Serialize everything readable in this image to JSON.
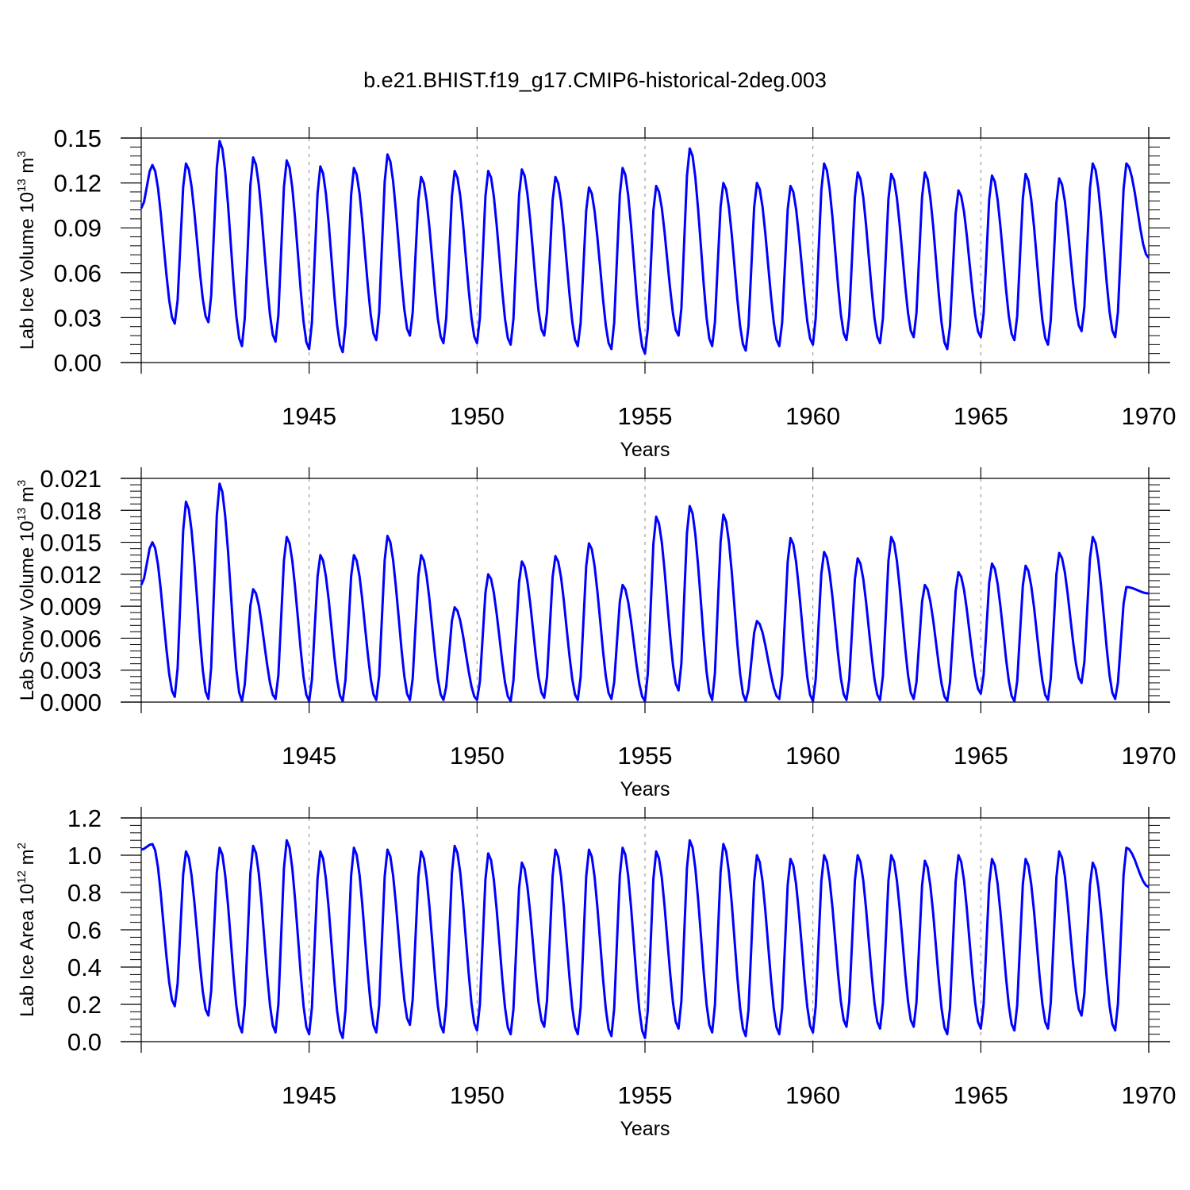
{
  "title": "b.e21.BHIST.f19_g17.CMIP6-historical-2deg.003",
  "chart_data": [
    {
      "type": "line",
      "xlabel": "Years",
      "ylabel_prefix": "Lab Ice Volume 10",
      "ylabel_exp": "13",
      "ylabel_unit": " m",
      "ylabel_unit_exp": "3",
      "xlim": [
        1940.0,
        1970.0
      ],
      "ylim": [
        0.0,
        0.15
      ],
      "xticks": [
        "1945",
        "1950",
        "1955",
        "1960",
        "1965",
        "1970"
      ],
      "yticks": [
        "0.00",
        "0.03",
        "0.06",
        "0.09",
        "0.12",
        "0.15"
      ],
      "line_color": "#0000ff",
      "dashed_gridlines": true,
      "cycle_max": [
        0.132,
        0.133,
        0.148,
        0.137,
        0.135,
        0.131,
        0.13,
        0.139,
        0.124,
        0.128,
        0.128,
        0.129,
        0.124,
        0.117,
        0.13,
        0.118,
        0.143,
        0.12,
        0.12,
        0.118,
        0.133,
        0.127,
        0.126,
        0.127,
        0.115,
        0.125,
        0.126,
        0.123,
        0.133,
        0.133
      ],
      "cycle_min": [
        0.103,
        0.026,
        0.027,
        0.011,
        0.014,
        0.009,
        0.007,
        0.015,
        0.018,
        0.013,
        0.013,
        0.012,
        0.018,
        0.011,
        0.009,
        0.006,
        0.018,
        0.011,
        0.008,
        0.011,
        0.012,
        0.015,
        0.013,
        0.017,
        0.009,
        0.017,
        0.015,
        0.012,
        0.021,
        0.017
      ],
      "end_value": 0.07
    },
    {
      "type": "line",
      "xlabel": "Years",
      "ylabel_prefix": "Lab Snow Volume 10",
      "ylabel_exp": "13",
      "ylabel_unit": " m",
      "ylabel_unit_exp": "3",
      "xlim": [
        1940.0,
        1970.0
      ],
      "ylim": [
        0.0,
        0.021
      ],
      "xticks": [
        "1945",
        "1950",
        "1955",
        "1960",
        "1965",
        "1970"
      ],
      "yticks": [
        "0.000",
        "0.003",
        "0.006",
        "0.009",
        "0.012",
        "0.015",
        "0.018",
        "0.021"
      ],
      "line_color": "#0000ff",
      "dashed_gridlines": true,
      "cycle_max": [
        0.015,
        0.0188,
        0.0205,
        0.0106,
        0.0155,
        0.0138,
        0.0138,
        0.0156,
        0.0138,
        0.0089,
        0.012,
        0.0132,
        0.0137,
        0.0149,
        0.011,
        0.0174,
        0.0184,
        0.0176,
        0.0076,
        0.0154,
        0.0141,
        0.0135,
        0.0155,
        0.011,
        0.0122,
        0.013,
        0.0128,
        0.014,
        0.0155,
        0.0108
      ],
      "cycle_min": [
        0.011,
        0.0005,
        0.0003,
        0.0001,
        0.0003,
        0.0001,
        0.0001,
        0.0002,
        0.0002,
        0.0002,
        0.0002,
        0.0001,
        0.0004,
        0.0002,
        0.0003,
        0.0001,
        0.0011,
        0.0002,
        0.0001,
        0.0003,
        0.0001,
        0.0002,
        0.0002,
        0.0003,
        0.0001,
        0.0008,
        0.0001,
        0.0002,
        0.0018,
        0.0003
      ],
      "end_value": 0.0102
    },
    {
      "type": "line",
      "xlabel": "Years",
      "ylabel_prefix": "Lab Ice Area 10",
      "ylabel_exp": "12",
      "ylabel_unit": " m",
      "ylabel_unit_exp": "2",
      "xlim": [
        1940.0,
        1970.0
      ],
      "ylim": [
        0.0,
        1.2
      ],
      "xticks": [
        "1945",
        "1950",
        "1955",
        "1960",
        "1965",
        "1970"
      ],
      "yticks": [
        "0.0",
        "0.2",
        "0.4",
        "0.6",
        "0.8",
        "1.0",
        "1.2"
      ],
      "line_color": "#0000ff",
      "dashed_gridlines": true,
      "cycle_max": [
        1.06,
        1.02,
        1.04,
        1.05,
        1.08,
        1.02,
        1.04,
        1.03,
        1.02,
        1.05,
        1.01,
        0.96,
        1.03,
        1.03,
        1.04,
        1.02,
        1.08,
        1.06,
        1.0,
        0.98,
        1.0,
        1.0,
        1.0,
        0.97,
        1.0,
        0.98,
        0.98,
        1.02,
        0.96,
        1.04
      ],
      "cycle_min": [
        1.03,
        0.19,
        0.14,
        0.05,
        0.05,
        0.04,
        0.02,
        0.05,
        0.09,
        0.05,
        0.06,
        0.04,
        0.08,
        0.04,
        0.03,
        0.02,
        0.07,
        0.05,
        0.03,
        0.04,
        0.05,
        0.08,
        0.07,
        0.08,
        0.04,
        0.07,
        0.06,
        0.07,
        0.14,
        0.06
      ],
      "end_value": 0.83
    }
  ]
}
